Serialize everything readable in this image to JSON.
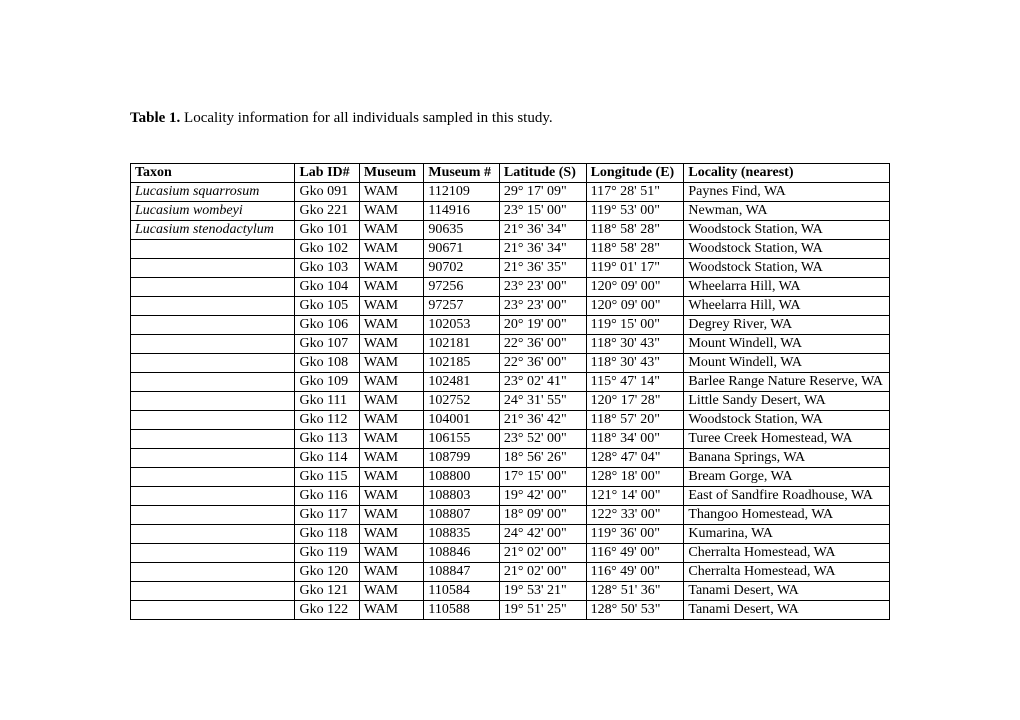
{
  "caption_bold": "Table 1.",
  "caption_rest": "  Locality information for all individuals sampled in this study.",
  "columns": [
    "Taxon",
    "Lab ID#",
    "Museum",
    "Museum #",
    "Latitude (S)",
    "Longitude (E)",
    "Locality (nearest)"
  ],
  "col_classes": [
    "c-taxon",
    "c-labid",
    "c-museum",
    "c-museumno",
    "c-lat",
    "c-lon",
    "c-loc"
  ],
  "rows": [
    {
      "taxon": "Lucasium squarrosum",
      "taxon_italic": true,
      "lab": "Gko 091",
      "mus": "WAM",
      "musno": "112109",
      "lat": "29° 17' 09\"",
      "lon": "117° 28' 51\"",
      "loc": "Paynes Find, WA"
    },
    {
      "taxon": "Lucasium wombeyi",
      "taxon_italic": true,
      "lab": "Gko 221",
      "mus": "WAM",
      "musno": "114916",
      "lat": "23° 15' 00\"",
      "lon": "119° 53' 00\"",
      "loc": "Newman, WA"
    },
    {
      "taxon": "Lucasium stenodactylum",
      "taxon_italic": true,
      "lab": "Gko 101",
      "mus": "WAM",
      "musno": "90635",
      "lat": "21° 36' 34\"",
      "lon": "118° 58' 28\"",
      "loc": "Woodstock Station, WA"
    },
    {
      "taxon": "",
      "lab": "Gko 102",
      "mus": "WAM",
      "musno": "90671",
      "lat": "21° 36' 34\"",
      "lon": "118° 58' 28\"",
      "loc": "Woodstock Station, WA"
    },
    {
      "taxon": "",
      "lab": "Gko 103",
      "mus": "WAM",
      "musno": "90702",
      "lat": "21° 36' 35\"",
      "lon": "119° 01' 17\"",
      "loc": "Woodstock Station, WA"
    },
    {
      "taxon": "",
      "lab": "Gko 104",
      "mus": "WAM",
      "musno": "97256",
      "lat": "23° 23' 00\"",
      "lon": "120° 09' 00\"",
      "loc": "Wheelarra Hill, WA"
    },
    {
      "taxon": "",
      "lab": "Gko 105",
      "mus": "WAM",
      "musno": "97257",
      "lat": "23° 23' 00\"",
      "lon": "120° 09' 00\"",
      "loc": "Wheelarra Hill, WA"
    },
    {
      "taxon": "",
      "lab": "Gko 106",
      "mus": "WAM",
      "musno": "102053",
      "lat": "20° 19' 00\"",
      "lon": "119° 15' 00\"",
      "loc": "Degrey River, WA"
    },
    {
      "taxon": "",
      "lab": "Gko 107",
      "mus": "WAM",
      "musno": "102181",
      "lat": "22° 36' 00\"",
      "lon": "118° 30' 43\"",
      "loc": "Mount Windell, WA"
    },
    {
      "taxon": "",
      "lab": "Gko 108",
      "mus": "WAM",
      "musno": "102185",
      "lat": "22° 36' 00\"",
      "lon": "118° 30' 43\"",
      "loc": "Mount Windell, WA"
    },
    {
      "taxon": "",
      "lab": "Gko 109",
      "mus": "WAM",
      "musno": "102481",
      "lat": "23° 02' 41\"",
      "lon": "115° 47' 14\"",
      "loc": "Barlee Range Nature Reserve, WA",
      "wrap": true
    },
    {
      "taxon": "",
      "lab": "Gko 111",
      "mus": "WAM",
      "musno": "102752",
      "lat": "24° 31' 55\"",
      "lon": "120° 17' 28\"",
      "loc": "Little Sandy Desert, WA"
    },
    {
      "taxon": "",
      "lab": "Gko 112",
      "mus": "WAM",
      "musno": "104001",
      "lat": "21° 36' 42\"",
      "lon": "118° 57' 20\"",
      "loc": "Woodstock Station, WA"
    },
    {
      "taxon": "",
      "lab": "Gko 113",
      "mus": "WAM",
      "musno": "106155",
      "lat": "23° 52' 00\"",
      "lon": "118° 34' 00\"",
      "loc": "Turee Creek Homestead, WA"
    },
    {
      "taxon": "",
      "lab": "Gko 114",
      "mus": "WAM",
      "musno": "108799",
      "lat": "18° 56' 26\"",
      "lon": "128° 47' 04\"",
      "loc": "Banana Springs, WA"
    },
    {
      "taxon": "",
      "lab": "Gko 115",
      "mus": "WAM",
      "musno": "108800",
      "lat": "17° 15' 00\"",
      "lon": "128° 18' 00\"",
      "loc": "Bream Gorge, WA"
    },
    {
      "taxon": "",
      "lab": "Gko 116",
      "mus": "WAM",
      "musno": "108803",
      "lat": "19° 42' 00\"",
      "lon": "121° 14' 00\"",
      "loc": "East of Sandfire Roadhouse, WA"
    },
    {
      "taxon": "",
      "lab": "Gko 117",
      "mus": "WAM",
      "musno": "108807",
      "lat": "18° 09' 00\"",
      "lon": "122° 33' 00\"",
      "loc": "Thangoo Homestead, WA"
    },
    {
      "taxon": "",
      "lab": "Gko 118",
      "mus": "WAM",
      "musno": "108835",
      "lat": "24° 42' 00\"",
      "lon": "119° 36' 00\"",
      "loc": "Kumarina, WA"
    },
    {
      "taxon": "",
      "lab": "Gko 119",
      "mus": "WAM",
      "musno": "108846",
      "lat": "21° 02' 00\"",
      "lon": "116° 49' 00\"",
      "loc": "Cherralta Homestead, WA"
    },
    {
      "taxon": "",
      "lab": "Gko 120",
      "mus": "WAM",
      "musno": "108847",
      "lat": "21° 02' 00\"",
      "lon": "116° 49' 00\"",
      "loc": "Cherralta Homestead, WA"
    },
    {
      "taxon": "",
      "lab": "Gko 121",
      "mus": "WAM",
      "musno": "110584",
      "lat": "19° 53' 21\"",
      "lon": "128° 51' 36\"",
      "loc": "Tanami Desert, WA"
    },
    {
      "taxon": "",
      "lab": "Gko 122",
      "mus": "WAM",
      "musno": "110588",
      "lat": "19° 51' 25\"",
      "lon": "128° 50' 53\"",
      "loc": "Tanami Desert, WA"
    }
  ]
}
